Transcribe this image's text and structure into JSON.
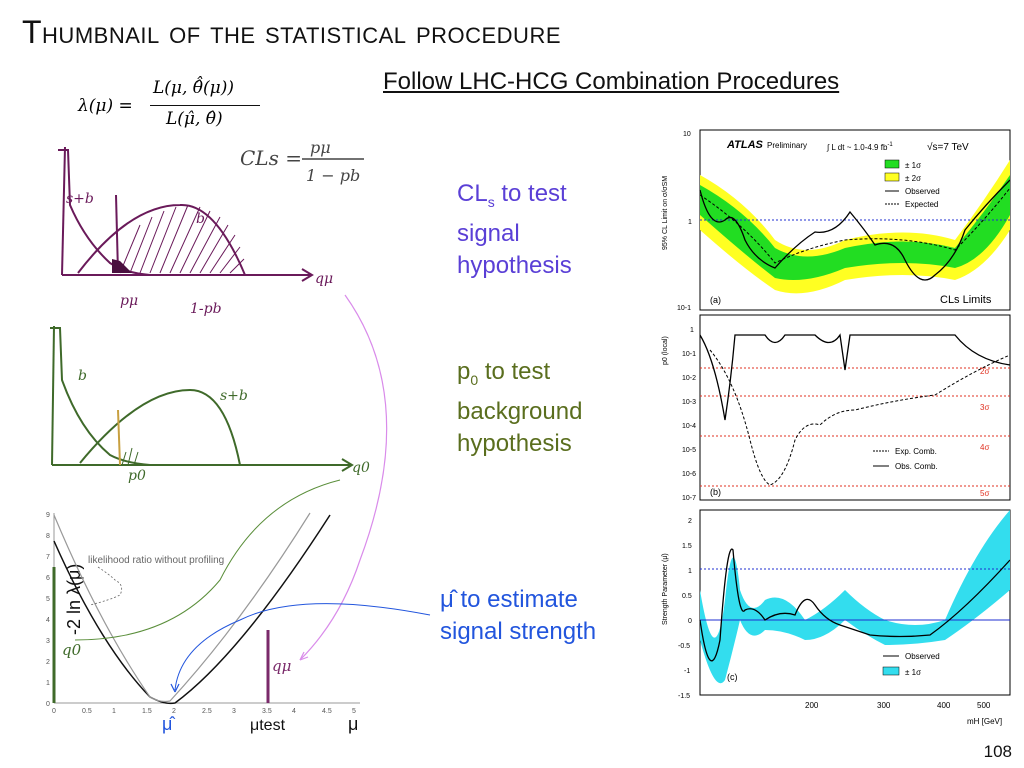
{
  "slide": {
    "title": "Thumbnail of the statistical procedure",
    "subtitle": "Follow LHC-HCG Combination Procedures",
    "page_number": "108"
  },
  "formula": {
    "lhs": "λ(μ) =",
    "numerator": "L(μ, θ̂̂(μ))",
    "denominator": "L(μ̂, θ̂)"
  },
  "labels": {
    "cls": {
      "line1": "CL",
      "sub": "s",
      "line1b": " to test",
      "line2": "signal",
      "line3": "hypothesis"
    },
    "p0": {
      "line1": "p",
      "sub": "0",
      "line1b": " to test",
      "line2": "background",
      "line3": "hypothesis"
    },
    "muhat": {
      "line1": "μ̂ to estimate",
      "line2": "signal strength"
    }
  },
  "sketch1": {
    "formula_lhs": "CLs =",
    "formula_num": "pμ",
    "formula_den": "1 − pb",
    "sb": "s+b",
    "b": "b",
    "pmu": "pμ",
    "one_minus_pb": "1-pb",
    "axis": "qμ"
  },
  "sketch2": {
    "b": "b",
    "sb": "s+b",
    "p0": "p0",
    "axis": "q0"
  },
  "lambda_plot": {
    "ylabel": "-2 ln λ(μ)",
    "annotation": "likelihood ratio without profiling",
    "q0": "q0",
    "qmu": "qμ",
    "muhat": "μ̂",
    "mutest": "μtest",
    "mu": "μ",
    "x_ticks": [
      "0",
      "0.5",
      "1",
      "1.5",
      "2",
      "2.5",
      "3",
      "3.5",
      "4",
      "4.5",
      "5"
    ],
    "y_ticks": [
      "0",
      "1",
      "2",
      "3",
      "4",
      "5",
      "6",
      "7",
      "8",
      "9"
    ]
  },
  "atlas": {
    "brand": "ATLAS",
    "preliminary": "Preliminary",
    "lumi": "L dt ~ 1.0-4.9 fb",
    "lumi_sup": "-1",
    "sqrt_s": "√s=7 TeV",
    "panel_a": {
      "ylabel": "95% CL Limit on σ/σSM",
      "tag": "(a)",
      "title": "CLs Limits",
      "legend": [
        "± 1σ",
        "± 2σ",
        "Observed",
        "Expected"
      ],
      "y_ticks": [
        "10",
        "1",
        "10-1"
      ],
      "colors": {
        "band1": "#22dd22",
        "band2": "#ffff22"
      }
    },
    "panel_b": {
      "ylabel": "p0 (local)",
      "tag": "(b)",
      "legend": [
        "Exp. Comb.",
        "Obs. Comb."
      ],
      "y_ticks": [
        "1",
        "10-1",
        "10-2",
        "10-3",
        "10-4",
        "10-5",
        "10-6",
        "10-7"
      ],
      "sigma_labels": [
        "2σ",
        "3σ",
        "4σ",
        "5σ"
      ]
    },
    "panel_c": {
      "ylabel": "Strength Parameter (μ̂)",
      "tag": "(c)",
      "legend": [
        "Observed",
        "± 1σ"
      ],
      "y_ticks": [
        "2",
        "1.5",
        "1",
        "0.5",
        "0",
        "-0.5",
        "-1",
        "-1.5"
      ],
      "x_ticks": [
        "200",
        "300",
        "400",
        "500"
      ],
      "xlabel": "mH [GeV]",
      "colors": {
        "band": "#33ddee"
      }
    }
  }
}
